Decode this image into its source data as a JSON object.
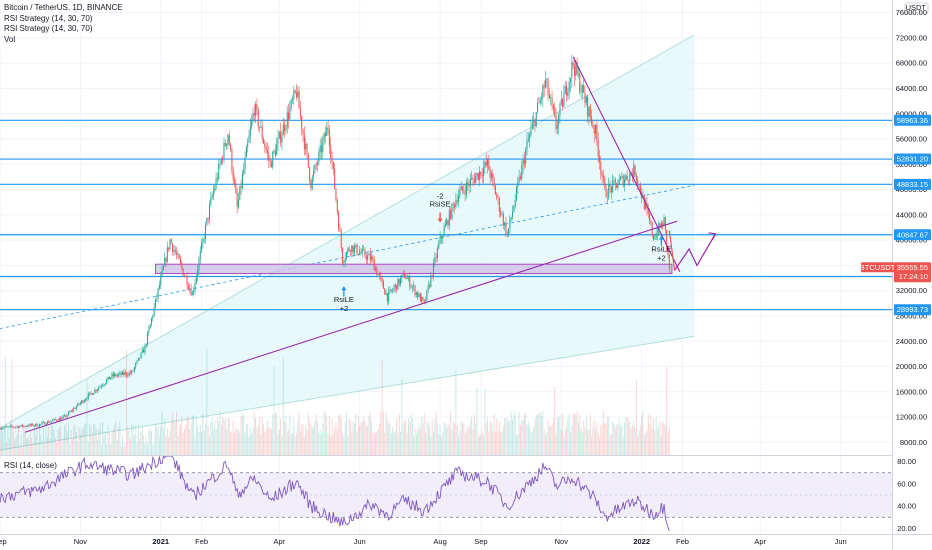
{
  "legend": {
    "title": "Bitcoin / TetherUS, 1D, BINANCE",
    "line2": "RSI Strategy (14, 30, 70)",
    "line3": "RSI Strategy (14, 30, 70)",
    "line4": "Vol"
  },
  "rsi_title": "RSI (14, close)",
  "currency": "USDT",
  "colors": {
    "up": "#26a69a",
    "down": "#ef5350",
    "hline": "#2196f3",
    "channel": "#b2ebf2",
    "purple": "#9c27b0",
    "rsi": "#7e57c2",
    "box": "#d1c4e9"
  },
  "chart_data": {
    "type": "candlestick",
    "symbol": "BTCUSDT",
    "price_axis": {
      "ticks": [
        8000,
        12000,
        16000,
        20000,
        24000,
        28000,
        32000,
        36000,
        40000,
        44000,
        48000,
        52000,
        56000,
        60000,
        64000,
        68000,
        72000,
        76000
      ],
      "range": [
        6000,
        78000
      ]
    },
    "time_axis": {
      "labels": [
        "Sep",
        "Nov",
        "2021",
        "Feb",
        "Apr",
        "Jun",
        "Aug",
        "Sep",
        "Nov",
        "2022",
        "Feb",
        "Apr",
        "Jun"
      ],
      "dates": [
        "2020-09-01",
        "2020-11-01",
        "2021-01-01",
        "2021-02-01",
        "2021-04-01",
        "2021-06-01",
        "2021-08-01",
        "2021-09-01",
        "2021-11-01",
        "2022-01-01",
        "2022-02-01",
        "2022-04-01",
        "2022-06-01"
      ],
      "range": [
        "2020-09-01",
        "2022-07-10"
      ]
    },
    "price_path": [
      [
        "2020-09-01",
        10300
      ],
      [
        "2020-10-01",
        10800
      ],
      [
        "2020-10-20",
        12000
      ],
      [
        "2020-11-05",
        15000
      ],
      [
        "2020-11-25",
        18500
      ],
      [
        "2020-12-10",
        19000
      ],
      [
        "2020-12-20",
        23000
      ],
      [
        "2021-01-08",
        40000
      ],
      [
        "2021-01-25",
        31500
      ],
      [
        "2021-02-08",
        46000
      ],
      [
        "2021-02-21",
        57000
      ],
      [
        "2021-02-28",
        45000
      ],
      [
        "2021-03-13",
        61000
      ],
      [
        "2021-03-25",
        52000
      ],
      [
        "2021-04-14",
        63500
      ],
      [
        "2021-04-25",
        49000
      ],
      [
        "2021-05-08",
        58000
      ],
      [
        "2021-05-19",
        37000
      ],
      [
        "2021-05-25",
        39000
      ],
      [
        "2021-06-10",
        37000
      ],
      [
        "2021-06-22",
        31000
      ],
      [
        "2021-07-05",
        34500
      ],
      [
        "2021-07-20",
        29800
      ],
      [
        "2021-08-01",
        40000
      ],
      [
        "2021-08-14",
        47000
      ],
      [
        "2021-09-06",
        52000
      ],
      [
        "2021-09-21",
        40800
      ],
      [
        "2021-10-06",
        55000
      ],
      [
        "2021-10-20",
        65000
      ],
      [
        "2021-10-28",
        58000
      ],
      [
        "2021-11-10",
        68000
      ],
      [
        "2021-11-27",
        57000
      ],
      [
        "2021-12-04",
        47500
      ],
      [
        "2021-12-27",
        51000
      ],
      [
        "2022-01-10",
        40500
      ],
      [
        "2022-01-18",
        43000
      ],
      [
        "2022-01-22",
        35555
      ]
    ],
    "last_price": "35555.55",
    "price_tag_symbol": "BTCUSDT",
    "countdown": "17:24:10",
    "horizontal_levels": [
      "58963.36",
      "52831.20",
      "48833.15",
      "40847.67",
      "34242.56",
      "28993.73"
    ],
    "signals": [
      {
        "label": "RsiLE",
        "qty": "+2",
        "date": "2021-05-20",
        "price": 30500
      },
      {
        "label": "RsiSE",
        "qty": "-2",
        "date": "2021-08-01",
        "price": 45000
      },
      {
        "label": "RsiLE",
        "qty": "+2",
        "date": "2022-01-16",
        "price": 38500
      }
    ],
    "rsi": {
      "levels": [
        30,
        70
      ],
      "ticks": [
        20,
        40,
        60,
        80
      ],
      "tick_labels": [
        "20.00",
        "40.00",
        "60.00",
        "80.00"
      ],
      "range": [
        15,
        85
      ],
      "path": [
        [
          "2020-09-01",
          48
        ],
        [
          "2020-10-01",
          55
        ],
        [
          "2020-11-05",
          78
        ],
        [
          "2020-12-10",
          68
        ],
        [
          "2021-01-08",
          88
        ],
        [
          "2021-01-25",
          48
        ],
        [
          "2021-02-21",
          78
        ],
        [
          "2021-02-28",
          50
        ],
        [
          "2021-03-13",
          65
        ],
        [
          "2021-03-25",
          45
        ],
        [
          "2021-04-14",
          62
        ],
        [
          "2021-04-25",
          40
        ],
        [
          "2021-05-19",
          24
        ],
        [
          "2021-06-10",
          42
        ],
        [
          "2021-06-22",
          32
        ],
        [
          "2021-07-05",
          45
        ],
        [
          "2021-07-20",
          36
        ],
        [
          "2021-08-14",
          70
        ],
        [
          "2021-09-06",
          62
        ],
        [
          "2021-09-21",
          40
        ],
        [
          "2021-10-20",
          76
        ],
        [
          "2021-10-28",
          58
        ],
        [
          "2021-11-10",
          66
        ],
        [
          "2021-11-27",
          46
        ],
        [
          "2021-12-04",
          30
        ],
        [
          "2021-12-27",
          45
        ],
        [
          "2022-01-10",
          33
        ],
        [
          "2022-01-18",
          40
        ],
        [
          "2022-01-22",
          20
        ]
      ]
    },
    "grid": true
  }
}
